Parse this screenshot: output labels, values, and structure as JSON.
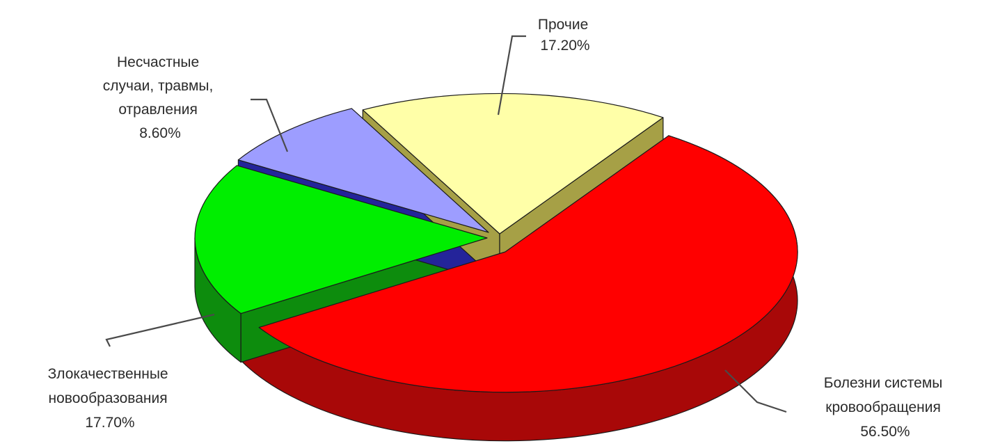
{
  "chart_data": {
    "type": "pie",
    "style": "3d-exploded",
    "unit": "%",
    "slices": [
      {
        "label": [
          "Болезни системы",
          "кровообращения"
        ],
        "value": 56.5,
        "value_text": "56.50%",
        "color": "#ff0000",
        "side_color": "#a80808"
      },
      {
        "label": [
          "Злокачественные",
          "новообразования"
        ],
        "value": 17.7,
        "value_text": "17.70%",
        "color": "#00ee00",
        "side_color": "#0d8c0d"
      },
      {
        "label": [
          "Несчастные",
          "случаи, травмы,",
          "отравления"
        ],
        "value": 8.6,
        "value_text": "8.60%",
        "color": "#9d9dff",
        "side_color": "#24249a"
      },
      {
        "label": [
          "Прочие"
        ],
        "value": 17.2,
        "value_text": "17.20%",
        "color": "#ffffa8",
        "side_color": "#a6a046"
      }
    ]
  }
}
